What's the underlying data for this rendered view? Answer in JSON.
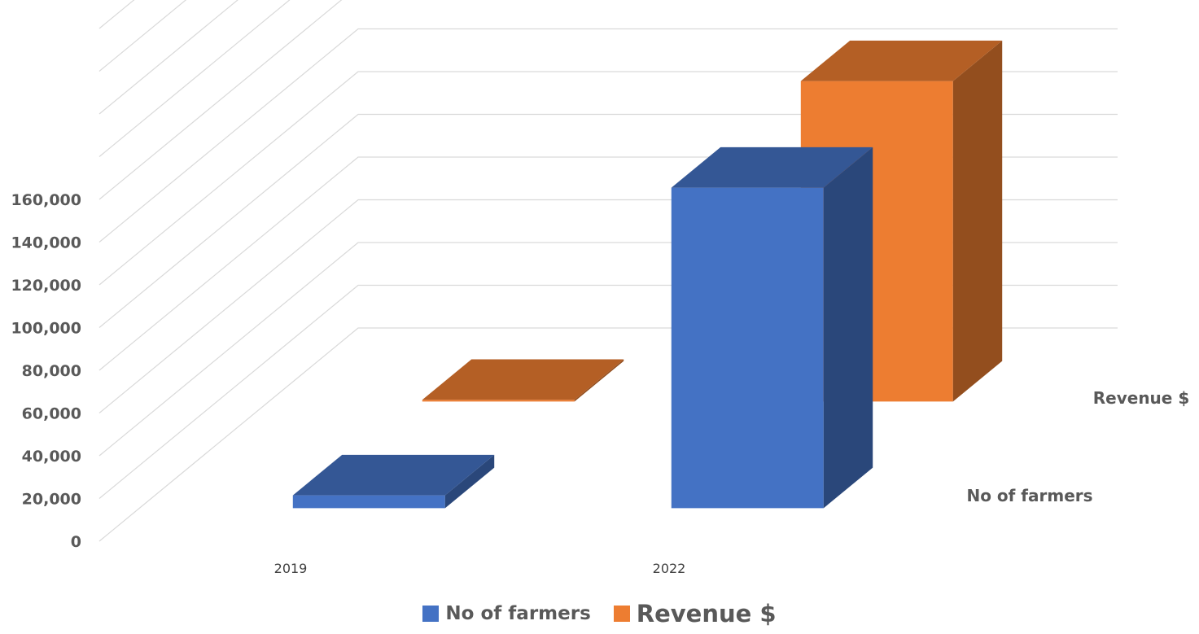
{
  "chart_data": {
    "type": "bar",
    "variant": "3d-column",
    "categories": [
      "2019",
      "2022"
    ],
    "series": [
      {
        "name": "No of farmers",
        "values": [
          6000,
          150000
        ],
        "color": "#4472C4"
      },
      {
        "name": "Revenue $",
        "values": [
          800,
          150000
        ],
        "color": "#ED7D31"
      }
    ],
    "y_ticks": [
      "0",
      "20,000",
      "40,000",
      "60,000",
      "80,000",
      "100,000",
      "120,000",
      "140,000",
      "160,000"
    ],
    "ylim": [
      0,
      160000
    ],
    "title": "",
    "xlabel": "",
    "ylabel": "",
    "grid": true,
    "legend_position": "bottom"
  }
}
